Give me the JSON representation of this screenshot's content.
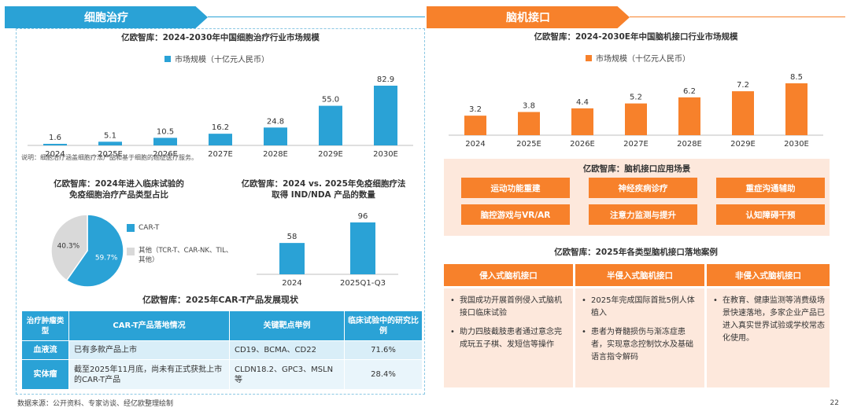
{
  "left_tab": "细胞治疗",
  "right_tab": "脑机接口",
  "left_market": {
    "title": "亿欧智库：2024-2030年中国细胞治疗行业市场规模",
    "legend": "市场规模（十亿元人民币）",
    "note": "说明：细胞治疗涵盖细胞疗法产品和基于细胞的癌症医疗服务。"
  },
  "pie": {
    "title_line1": "亿欧智库：2024年进入临床试验的",
    "title_line2": "免疫细胞治疗产品类型占比",
    "legend_cart": "CAR-T",
    "legend_other": "其他（TCR-T、CAR-NK、TIL、其他）"
  },
  "ind_chart": {
    "title_line1": "亿欧智库：2024 vs. 2025年免疫细胞疗法",
    "title_line2": "取得 IND/NDA 产品的数量"
  },
  "cart_table": {
    "title": "亿欧智库：2025年CAR-T产品发展现状",
    "headers": [
      "治疗肿瘤类型",
      "CAR-T产品落地情况",
      "关键靶点举例",
      "临床试验中的研究比例"
    ],
    "rows": [
      {
        "type": "血液流",
        "status": "已有多款产品上市",
        "targets": "CD19、BCMA、CD22",
        "pct": "71.6%"
      },
      {
        "type": "实体瘤",
        "status": "截至2025年11月底，尚未有正式获批上市的CAR-T产品",
        "targets": "CLDN18.2、GPC3、MSLN等",
        "pct": "28.4%"
      }
    ]
  },
  "right_market": {
    "title": "亿欧智库：2024-2030E年中国脑机接口行业市场规模",
    "legend": "市场规模（十亿元人民币）"
  },
  "scenarios": {
    "title": "亿欧智库：脑机接口应用场景",
    "items": [
      "运动功能重建",
      "神经疾病诊疗",
      "重症沟通辅助",
      "脑控游戏与VR/AR",
      "注意力监测与提升",
      "认知障碍干预"
    ]
  },
  "cases": {
    "title": "亿欧智库：2025年各类型脑机接口落地案例",
    "columns": [
      {
        "head": "侵入式脑机接口",
        "items": [
          "我国成功开展首例侵入式脑机接口临床试验",
          "助力四肢截肢患者通过意念完成玩五子棋、发短信等操作"
        ]
      },
      {
        "head": "半侵入式脑机接口",
        "items": [
          "2025年完成国际首批5例人体植入",
          "患者为脊髓损伤与渐冻症患者，实现意念控制饮水及基础语言指令解码"
        ]
      },
      {
        "head": "非侵入式脑机接口",
        "items": [
          "在教育、健康监测等消费级场景快速落地，多家企业产品已进入真实世界试验或学校常态化使用。"
        ]
      }
    ]
  },
  "footer": {
    "source": "数据来源：公开资料、专家访谈、经亿欧整理绘制",
    "page": "22"
  },
  "colors": {
    "blue": "#2aa2d6",
    "orange": "#f7812b",
    "gray": "#d9d9d9"
  },
  "chart_data": [
    {
      "type": "bar",
      "title": "亿欧智库：2024-2030年中国细胞治疗行业市场规模",
      "legend": [
        "市场规模（十亿元人民币）"
      ],
      "categories": [
        "2024",
        "2025E",
        "2026E",
        "2027E",
        "2028E",
        "2029E",
        "2030E"
      ],
      "values": [
        1.6,
        5.1,
        10.5,
        16.2,
        24.8,
        55.0,
        82.9
      ],
      "value_labels": [
        "1.6",
        "5.1",
        "10.5",
        "16.2",
        "24.8",
        "55.0",
        "82.9"
      ],
      "ylim": [
        0,
        82.9
      ]
    },
    {
      "type": "pie",
      "title": "亿欧智库：2024年进入临床试验的免疫细胞治疗产品类型占比",
      "categories": [
        "CAR-T",
        "其他（TCR-T、CAR-NK、TIL、其他）"
      ],
      "values": [
        59.7,
        40.3
      ],
      "value_labels": [
        "59.7%",
        "40.3%"
      ]
    },
    {
      "type": "bar",
      "title": "亿欧智库：2024 vs. 2025年免疫细胞疗法取得 IND/NDA 产品的数量",
      "categories": [
        "2024",
        "2025Q1-Q3"
      ],
      "values": [
        58,
        96
      ],
      "value_labels": [
        "58",
        "96"
      ],
      "ylim": [
        0,
        96
      ]
    },
    {
      "type": "bar",
      "title": "亿欧智库：2024-2030E年中国脑机接口行业市场规模",
      "legend": [
        "市场规模（十亿元人民币）"
      ],
      "categories": [
        "2024",
        "2025E",
        "2026E",
        "2027E",
        "2028E",
        "2029E",
        "2030E"
      ],
      "values": [
        3.2,
        3.8,
        4.4,
        5.2,
        6.2,
        7.2,
        8.5
      ],
      "value_labels": [
        "3.2",
        "3.8",
        "4.4",
        "5.2",
        "6.2",
        "7.2",
        "8.5"
      ],
      "ylim": [
        0,
        8.5
      ]
    }
  ]
}
